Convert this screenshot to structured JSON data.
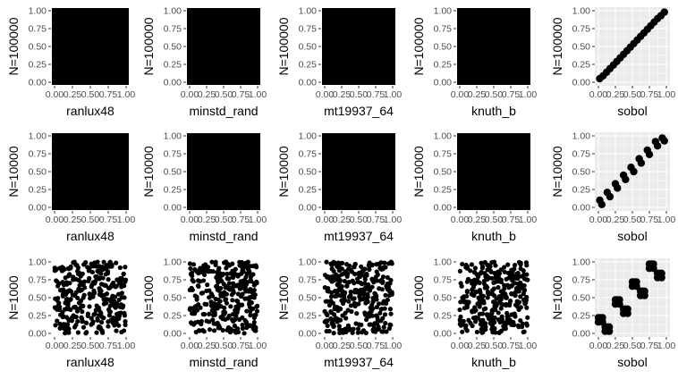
{
  "figure": {
    "panel_background_default": "#ebebeb",
    "gridline_color": "#ffffff",
    "point_color": "#000000",
    "tick_labels": [
      "0.00",
      "0.25",
      "0.50",
      "0.75",
      "1.00"
    ],
    "rows": [
      "N=100000",
      "N=10000",
      "N=1000"
    ],
    "columns": [
      "ranlux48",
      "minstd_rand",
      "mt19937_64",
      "knuth_b",
      "sobol"
    ]
  },
  "chart_data": [
    {
      "type": "scatter",
      "row": 0,
      "col": 0,
      "xlabel": "ranlux48",
      "ylabel": "N=100000",
      "xlim": [
        0,
        1
      ],
      "ylim": [
        0,
        1
      ],
      "grid": true,
      "fill": "dense",
      "point_count": 100000
    },
    {
      "type": "scatter",
      "row": 0,
      "col": 1,
      "xlabel": "minstd_rand",
      "ylabel": "N=100000",
      "xlim": [
        0,
        1
      ],
      "ylim": [
        0,
        1
      ],
      "grid": true,
      "fill": "dense",
      "point_count": 100000
    },
    {
      "type": "scatter",
      "row": 0,
      "col": 2,
      "xlabel": "mt19937_64",
      "ylabel": "N=100000",
      "xlim": [
        0,
        1
      ],
      "ylim": [
        0,
        1
      ],
      "grid": true,
      "fill": "dense",
      "point_count": 100000
    },
    {
      "type": "scatter",
      "row": 0,
      "col": 3,
      "xlabel": "knuth_b",
      "ylabel": "N=100000",
      "xlim": [
        0,
        1
      ],
      "ylim": [
        0,
        1
      ],
      "grid": true,
      "fill": "dense",
      "point_count": 100000
    },
    {
      "type": "scatter",
      "row": 0,
      "col": 4,
      "xlabel": "sobol",
      "ylabel": "N=100000",
      "xlim": [
        0,
        1
      ],
      "ylim": [
        0,
        1
      ],
      "grid": true,
      "pattern": "diagonal",
      "x": [
        0.02,
        0.07,
        0.12,
        0.17,
        0.22,
        0.27,
        0.32,
        0.37,
        0.42,
        0.47,
        0.52,
        0.57,
        0.62,
        0.67,
        0.72,
        0.77,
        0.82,
        0.87,
        0.92,
        0.97
      ],
      "y": [
        0.05,
        0.09,
        0.14,
        0.19,
        0.24,
        0.29,
        0.34,
        0.39,
        0.44,
        0.49,
        0.54,
        0.59,
        0.64,
        0.69,
        0.74,
        0.79,
        0.84,
        0.89,
        0.93,
        0.98
      ]
    },
    {
      "type": "scatter",
      "row": 1,
      "col": 0,
      "xlabel": "ranlux48",
      "ylabel": "N=10000",
      "xlim": [
        0,
        1
      ],
      "ylim": [
        0,
        1
      ],
      "grid": true,
      "fill": "dense",
      "point_count": 10000
    },
    {
      "type": "scatter",
      "row": 1,
      "col": 1,
      "xlabel": "minstd_rand",
      "ylabel": "N=10000",
      "xlim": [
        0,
        1
      ],
      "ylim": [
        0,
        1
      ],
      "grid": true,
      "fill": "dense",
      "point_count": 10000
    },
    {
      "type": "scatter",
      "row": 1,
      "col": 2,
      "xlabel": "mt19937_64",
      "ylabel": "N=10000",
      "xlim": [
        0,
        1
      ],
      "ylim": [
        0,
        1
      ],
      "grid": true,
      "fill": "dense",
      "point_count": 10000
    },
    {
      "type": "scatter",
      "row": 1,
      "col": 3,
      "xlabel": "knuth_b",
      "ylabel": "N=10000",
      "xlim": [
        0,
        1
      ],
      "ylim": [
        0,
        1
      ],
      "grid": true,
      "fill": "dense",
      "point_count": 10000
    },
    {
      "type": "scatter",
      "row": 1,
      "col": 4,
      "xlabel": "sobol",
      "ylabel": "N=10000",
      "xlim": [
        0,
        1
      ],
      "ylim": [
        0,
        1
      ],
      "grid": true,
      "pattern": "stepped-diagonal",
      "x": [
        0.02,
        0.05,
        0.13,
        0.17,
        0.25,
        0.28,
        0.37,
        0.4,
        0.48,
        0.52,
        0.6,
        0.63,
        0.72,
        0.75,
        0.84,
        0.87,
        0.94,
        0.97
      ],
      "y": [
        0.1,
        0.04,
        0.21,
        0.15,
        0.33,
        0.27,
        0.45,
        0.39,
        0.56,
        0.5,
        0.68,
        0.62,
        0.8,
        0.74,
        0.92,
        0.86,
        0.97,
        0.93
      ]
    },
    {
      "type": "scatter",
      "row": 2,
      "col": 0,
      "xlabel": "ranlux48",
      "ylabel": "N=1000",
      "xlim": [
        0,
        1
      ],
      "ylim": [
        0,
        1
      ],
      "grid": true,
      "fill": "sparse",
      "point_count": 1000
    },
    {
      "type": "scatter",
      "row": 2,
      "col": 1,
      "xlabel": "minstd_rand",
      "ylabel": "N=1000",
      "xlim": [
        0,
        1
      ],
      "ylim": [
        0,
        1
      ],
      "grid": true,
      "fill": "sparse",
      "point_count": 1000
    },
    {
      "type": "scatter",
      "row": 2,
      "col": 2,
      "xlabel": "mt19937_64",
      "ylabel": "N=1000",
      "xlim": [
        0,
        1
      ],
      "ylim": [
        0,
        1
      ],
      "grid": true,
      "fill": "sparse",
      "point_count": 1000
    },
    {
      "type": "scatter",
      "row": 2,
      "col": 3,
      "xlabel": "knuth_b",
      "ylabel": "N=1000",
      "xlim": [
        0,
        1
      ],
      "ylim": [
        0,
        1
      ],
      "grid": true,
      "fill": "sparse",
      "point_count": 1000
    },
    {
      "type": "scatter",
      "row": 2,
      "col": 4,
      "xlabel": "sobol",
      "ylabel": "N=1000",
      "xlim": [
        0,
        1
      ],
      "ylim": [
        0,
        1
      ],
      "grid": true,
      "pattern": "x-clusters",
      "x": [
        0.0,
        0.03,
        0.06,
        0.03,
        0.0,
        0.06,
        0.1,
        0.13,
        0.16,
        0.13,
        0.1,
        0.16,
        0.25,
        0.28,
        0.31,
        0.28,
        0.25,
        0.31,
        0.37,
        0.4,
        0.43,
        0.4,
        0.37,
        0.43,
        0.5,
        0.53,
        0.56,
        0.53,
        0.5,
        0.56,
        0.62,
        0.65,
        0.68,
        0.65,
        0.62,
        0.68,
        0.75,
        0.78,
        0.81,
        0.78,
        0.75,
        0.81,
        0.87,
        0.9,
        0.93,
        0.9,
        0.87,
        0.93
      ],
      "y": [
        0.16,
        0.19,
        0.22,
        0.22,
        0.22,
        0.16,
        0.03,
        0.06,
        0.09,
        0.09,
        0.09,
        0.03,
        0.41,
        0.44,
        0.47,
        0.47,
        0.47,
        0.41,
        0.28,
        0.31,
        0.34,
        0.34,
        0.34,
        0.28,
        0.66,
        0.69,
        0.72,
        0.72,
        0.72,
        0.66,
        0.53,
        0.56,
        0.59,
        0.59,
        0.59,
        0.53,
        0.91,
        0.94,
        0.97,
        0.97,
        0.97,
        0.91,
        0.78,
        0.81,
        0.84,
        0.84,
        0.84,
        0.78
      ]
    }
  ]
}
